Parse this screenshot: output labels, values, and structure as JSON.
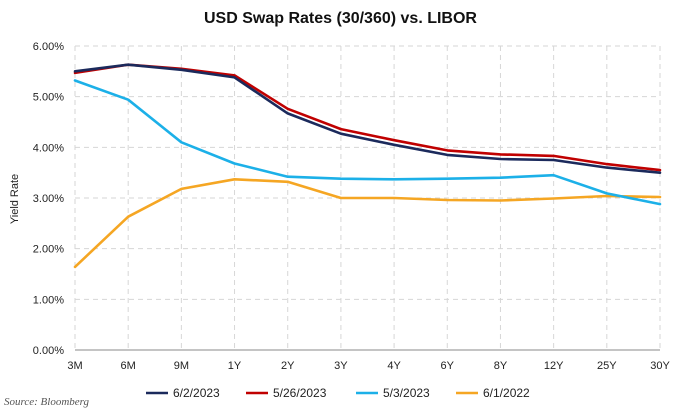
{
  "chart_data": {
    "type": "line",
    "title": "USD Swap Rates (30/360) vs. LIBOR",
    "ylabel": "Yield Rate",
    "xlabel": "",
    "categories": [
      "3M",
      "6M",
      "9M",
      "1Y",
      "2Y",
      "3Y",
      "4Y",
      "6Y",
      "8Y",
      "12Y",
      "25Y",
      "30Y"
    ],
    "ylim": [
      0,
      6
    ],
    "yticks": [
      "0.00%",
      "1.00%",
      "2.00%",
      "3.00%",
      "4.00%",
      "5.00%",
      "6.00%"
    ],
    "grid": true,
    "legend_position": "bottom",
    "series": [
      {
        "name": "6/2/2023",
        "color": "#1b2a5c",
        "values": [
          5.5,
          5.63,
          5.53,
          5.38,
          4.67,
          4.27,
          4.05,
          3.85,
          3.77,
          3.75,
          3.6,
          3.5
        ]
      },
      {
        "name": "5/26/2023",
        "color": "#c00000",
        "values": [
          5.47,
          5.63,
          5.55,
          5.42,
          4.76,
          4.36,
          4.14,
          3.94,
          3.86,
          3.83,
          3.67,
          3.55
        ]
      },
      {
        "name": "5/3/2023",
        "color": "#1cb0e8",
        "values": [
          5.32,
          4.94,
          4.1,
          3.68,
          3.42,
          3.38,
          3.37,
          3.38,
          3.4,
          3.45,
          3.09,
          2.88
        ]
      },
      {
        "name": "6/1/2022",
        "color": "#f5a623",
        "values": [
          1.64,
          2.63,
          3.18,
          3.37,
          3.32,
          3.0,
          3.0,
          2.96,
          2.95,
          2.99,
          3.04,
          3.02
        ]
      }
    ]
  },
  "source": "Source: Bloomberg"
}
